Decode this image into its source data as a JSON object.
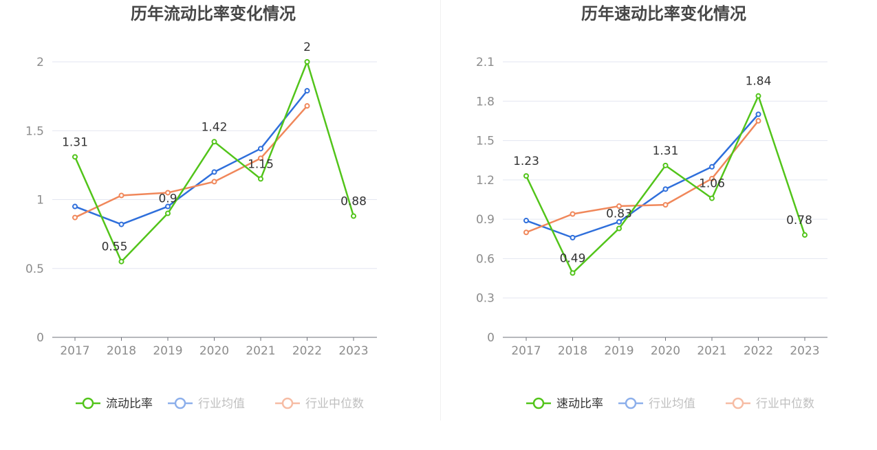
{
  "charts": [
    {
      "chart_data": {
        "type": "line",
        "title": "历年流动比率变化情况",
        "categories": [
          "2017",
          "2018",
          "2019",
          "2020",
          "2021",
          "2022",
          "2023"
        ],
        "ylim": [
          0,
          2
        ],
        "yticks": [
          0,
          0.5,
          1,
          1.5,
          2
        ],
        "ytick_labels": [
          "0",
          "0.5",
          "1",
          "1.5",
          "2"
        ],
        "grid": true,
        "legend_position": "bottom",
        "series": [
          {
            "name": "流动比率",
            "color": "#52c41a",
            "values": [
              1.31,
              0.55,
              0.9,
              1.42,
              1.15,
              2,
              0.88
            ],
            "labels": [
              "1.31",
              "0.55",
              "0.9",
              "1.42",
              "1.15",
              "2",
              "0.88"
            ]
          },
          {
            "name": "行业均值",
            "color": "#2f6fdb",
            "values": [
              0.95,
              0.82,
              0.95,
              1.2,
              1.37,
              1.79,
              null
            ]
          },
          {
            "name": "行业中位数",
            "color": "#f0875a",
            "values": [
              0.87,
              1.03,
              1.05,
              1.13,
              1.3,
              1.68,
              null
            ]
          }
        ]
      }
    },
    {
      "chart_data": {
        "type": "line",
        "title": "历年速动比率变化情况",
        "categories": [
          "2017",
          "2018",
          "2019",
          "2020",
          "2021",
          "2022",
          "2023"
        ],
        "ylim": [
          0,
          2.1
        ],
        "yticks": [
          0,
          0.3,
          0.6,
          0.9,
          1.2,
          1.5,
          1.8,
          2.1
        ],
        "ytick_labels": [
          "0",
          "0.3",
          "0.6",
          "0.9",
          "1.2",
          "1.5",
          "1.8",
          "2.1"
        ],
        "grid": true,
        "legend_position": "bottom",
        "series": [
          {
            "name": "速动比率",
            "color": "#52c41a",
            "values": [
              1.23,
              0.49,
              0.83,
              1.31,
              1.06,
              1.84,
              0.78
            ],
            "labels": [
              "1.23",
              "0.49",
              "0.83",
              "1.31",
              "1.06",
              "1.84",
              "0.78"
            ]
          },
          {
            "name": "行业均值",
            "color": "#2f6fdb",
            "values": [
              0.89,
              0.76,
              0.88,
              1.13,
              1.3,
              1.7,
              null
            ]
          },
          {
            "name": "行业中位数",
            "color": "#f0875a",
            "values": [
              0.8,
              0.94,
              1.0,
              1.01,
              1.21,
              1.65,
              null
            ]
          }
        ]
      }
    }
  ]
}
